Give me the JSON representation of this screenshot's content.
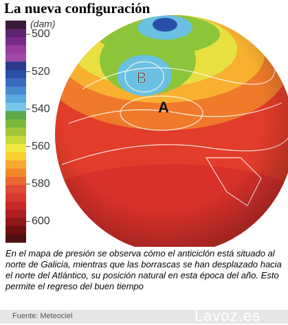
{
  "header": {
    "title": "La nueva configuración"
  },
  "legend": {
    "unit": "(dam)",
    "ticks": [
      "500",
      "520",
      "540",
      "560",
      "580",
      "600"
    ],
    "colors": [
      "#3a1a3a",
      "#5a2470",
      "#7a2a8c",
      "#9a3a9a",
      "#a04aa8",
      "#2a3a8c",
      "#2a4fa8",
      "#3a6ac0",
      "#4a88d0",
      "#5aa8e0",
      "#7ac8e8",
      "#5aa84a",
      "#7ab83a",
      "#a0c83a",
      "#c8d83a",
      "#f0e840",
      "#f8d030",
      "#f8a830",
      "#f08828",
      "#e86830",
      "#e04a38",
      "#d83a30",
      "#c82a28",
      "#b01e20",
      "#901818",
      "#701010",
      "#501010"
    ]
  },
  "map": {
    "labels": [
      "B",
      "A"
    ]
  },
  "caption": "En el mapa de presión se observa cómo el anticiclón está situado al norte de Galicia, mientras que las borrascas se han desplazado hacia el norte del Atlántico, su posición natural en esta época del año. Esto permite el regreso del buen tiempo",
  "footer": {
    "source": "Fuente: Meteociel",
    "brand": "Lavoz.es"
  }
}
